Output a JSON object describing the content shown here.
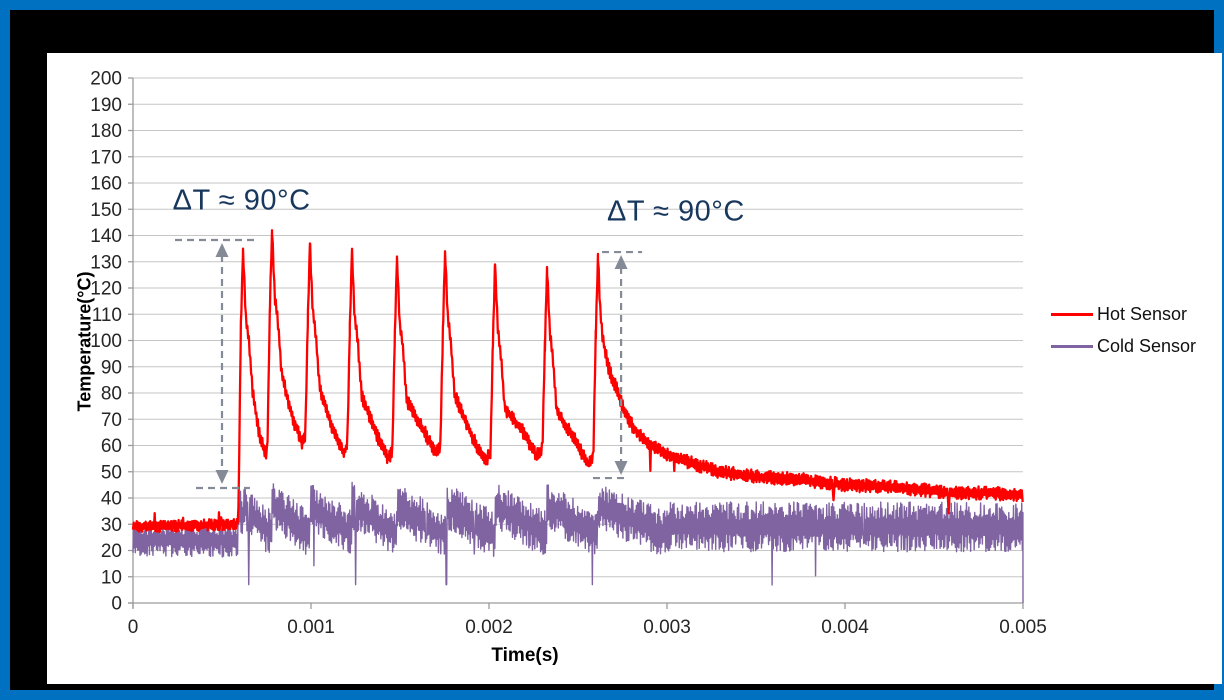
{
  "colors": {
    "outer_frame_blue": "#0070C0",
    "inner_mat_black": "#000000",
    "panel_background": "#FFFFFF",
    "gridline": "#C6C6C6",
    "axis_line": "#9C9C9C",
    "tick_text": "#262626",
    "annotation_text": "#17375D",
    "arrow_gray": "#848B97",
    "hot_series": "#FF0000",
    "cold_series": "#8064A2"
  },
  "axis": {
    "x_title": "Time(s)",
    "y_title": "Temperature(°C)"
  },
  "legend": {
    "items": [
      {
        "label": "Hot Sensor",
        "color": "#FF0000"
      },
      {
        "label": "Cold Sensor",
        "color": "#8064A2"
      }
    ]
  },
  "chart_data": {
    "type": "line",
    "title": "",
    "xlabel": "Time(s)",
    "ylabel": "Temperature(°C)",
    "xlim": [
      0,
      0.005
    ],
    "ylim": [
      0,
      200
    ],
    "x_tick_values": [
      0,
      0.001,
      0.002,
      0.003,
      0.004,
      0.005
    ],
    "x_tick_labels": [
      "0",
      "0.001",
      "0.002",
      "0.003",
      "0.004",
      "0.005"
    ],
    "y_tick_min": 0,
    "y_tick_max": 200,
    "y_tick_step": 10,
    "grid": "horizontal-only",
    "legend_position": "right-middle",
    "series": [
      {
        "name": "Hot Sensor",
        "color": "#FF0000",
        "stroke_width": 2.3,
        "baseline": {
          "t_start": 0,
          "t_end": 0.00059,
          "mean": 29,
          "noise": 2.2
        },
        "pulses": [
          {
            "t": 0.000618,
            "peak": 135,
            "valley": 56
          },
          {
            "t": 0.000781,
            "peak": 142,
            "valley": 61
          },
          {
            "t": 0.000994,
            "peak": 137,
            "valley": 57
          },
          {
            "t": 0.00123,
            "peak": 134,
            "valley": 55
          },
          {
            "t": 0.001483,
            "peak": 132,
            "valley": 57
          },
          {
            "t": 0.001753,
            "peak": 134,
            "valley": 54
          },
          {
            "t": 0.002034,
            "peak": 129,
            "valley": 56
          },
          {
            "t": 0.002326,
            "peak": 128,
            "valley": 53
          },
          {
            "t": 0.002612,
            "peak": 133,
            "valley": 60
          }
        ],
        "tail": [
          [
            0.002624,
            112
          ],
          [
            0.00264,
            100
          ],
          [
            0.002656,
            95
          ],
          [
            0.00267,
            90
          ],
          [
            0.00269,
            86
          ],
          [
            0.002715,
            82
          ],
          [
            0.002745,
            76
          ],
          [
            0.002775,
            71
          ],
          [
            0.00281,
            67
          ],
          [
            0.00286,
            63
          ],
          [
            0.00292,
            60
          ],
          [
            0.00299,
            57
          ],
          [
            0.00306,
            55
          ],
          [
            0.00315,
            53
          ],
          [
            0.0033,
            50
          ],
          [
            0.0035,
            48
          ],
          [
            0.00375,
            47
          ],
          [
            0.004,
            45
          ],
          [
            0.0043,
            44
          ],
          [
            0.0046,
            42
          ],
          [
            0.0048,
            42
          ],
          [
            0.005,
            41
          ]
        ],
        "tail_noise": 2.6
      },
      {
        "name": "Cold Sensor",
        "color": "#8064A2",
        "stroke_width": 1.4,
        "baseline": {
          "t_start": 0,
          "t_end": 0.00059,
          "mean": 24,
          "noise": 6.5
        },
        "burst": {
          "t_end": 0.003,
          "top": 37,
          "decay_to": 26,
          "noise": 9,
          "dip_value": 7
        },
        "dip_times": [
          0.00065,
          0.00125,
          0.00176,
          0.00258
        ],
        "post": {
          "mean": 29,
          "noise": 9.5
        },
        "end_point": [
          0.005,
          0
        ]
      }
    ],
    "annotations": [
      {
        "text": "ΔT ≈ 90°C",
        "t": 0.00061,
        "T": 153
      },
      {
        "text": "ΔT ≈ 90°C",
        "t": 0.00305,
        "T": 149
      }
    ],
    "arrows": [
      {
        "t": 0.0005,
        "T_top": 138.3,
        "T_bottom": 44.2,
        "top_bar_t": [
          0.000236,
          0.000685
        ],
        "top_bar_T": 138.3,
        "bottom_bar_t": [
          0.000354,
          0.000657
        ],
        "bottom_bar_T": 43.8
      },
      {
        "t": 0.002742,
        "T_top": 133.7,
        "T_bottom": 47.6,
        "top_bar_t": [
          0.002635,
          0.00286
        ],
        "top_bar_T": 133.7,
        "bottom_bar_t": [
          0.002584,
          0.002775
        ],
        "bottom_bar_T": 47.6
      }
    ]
  }
}
